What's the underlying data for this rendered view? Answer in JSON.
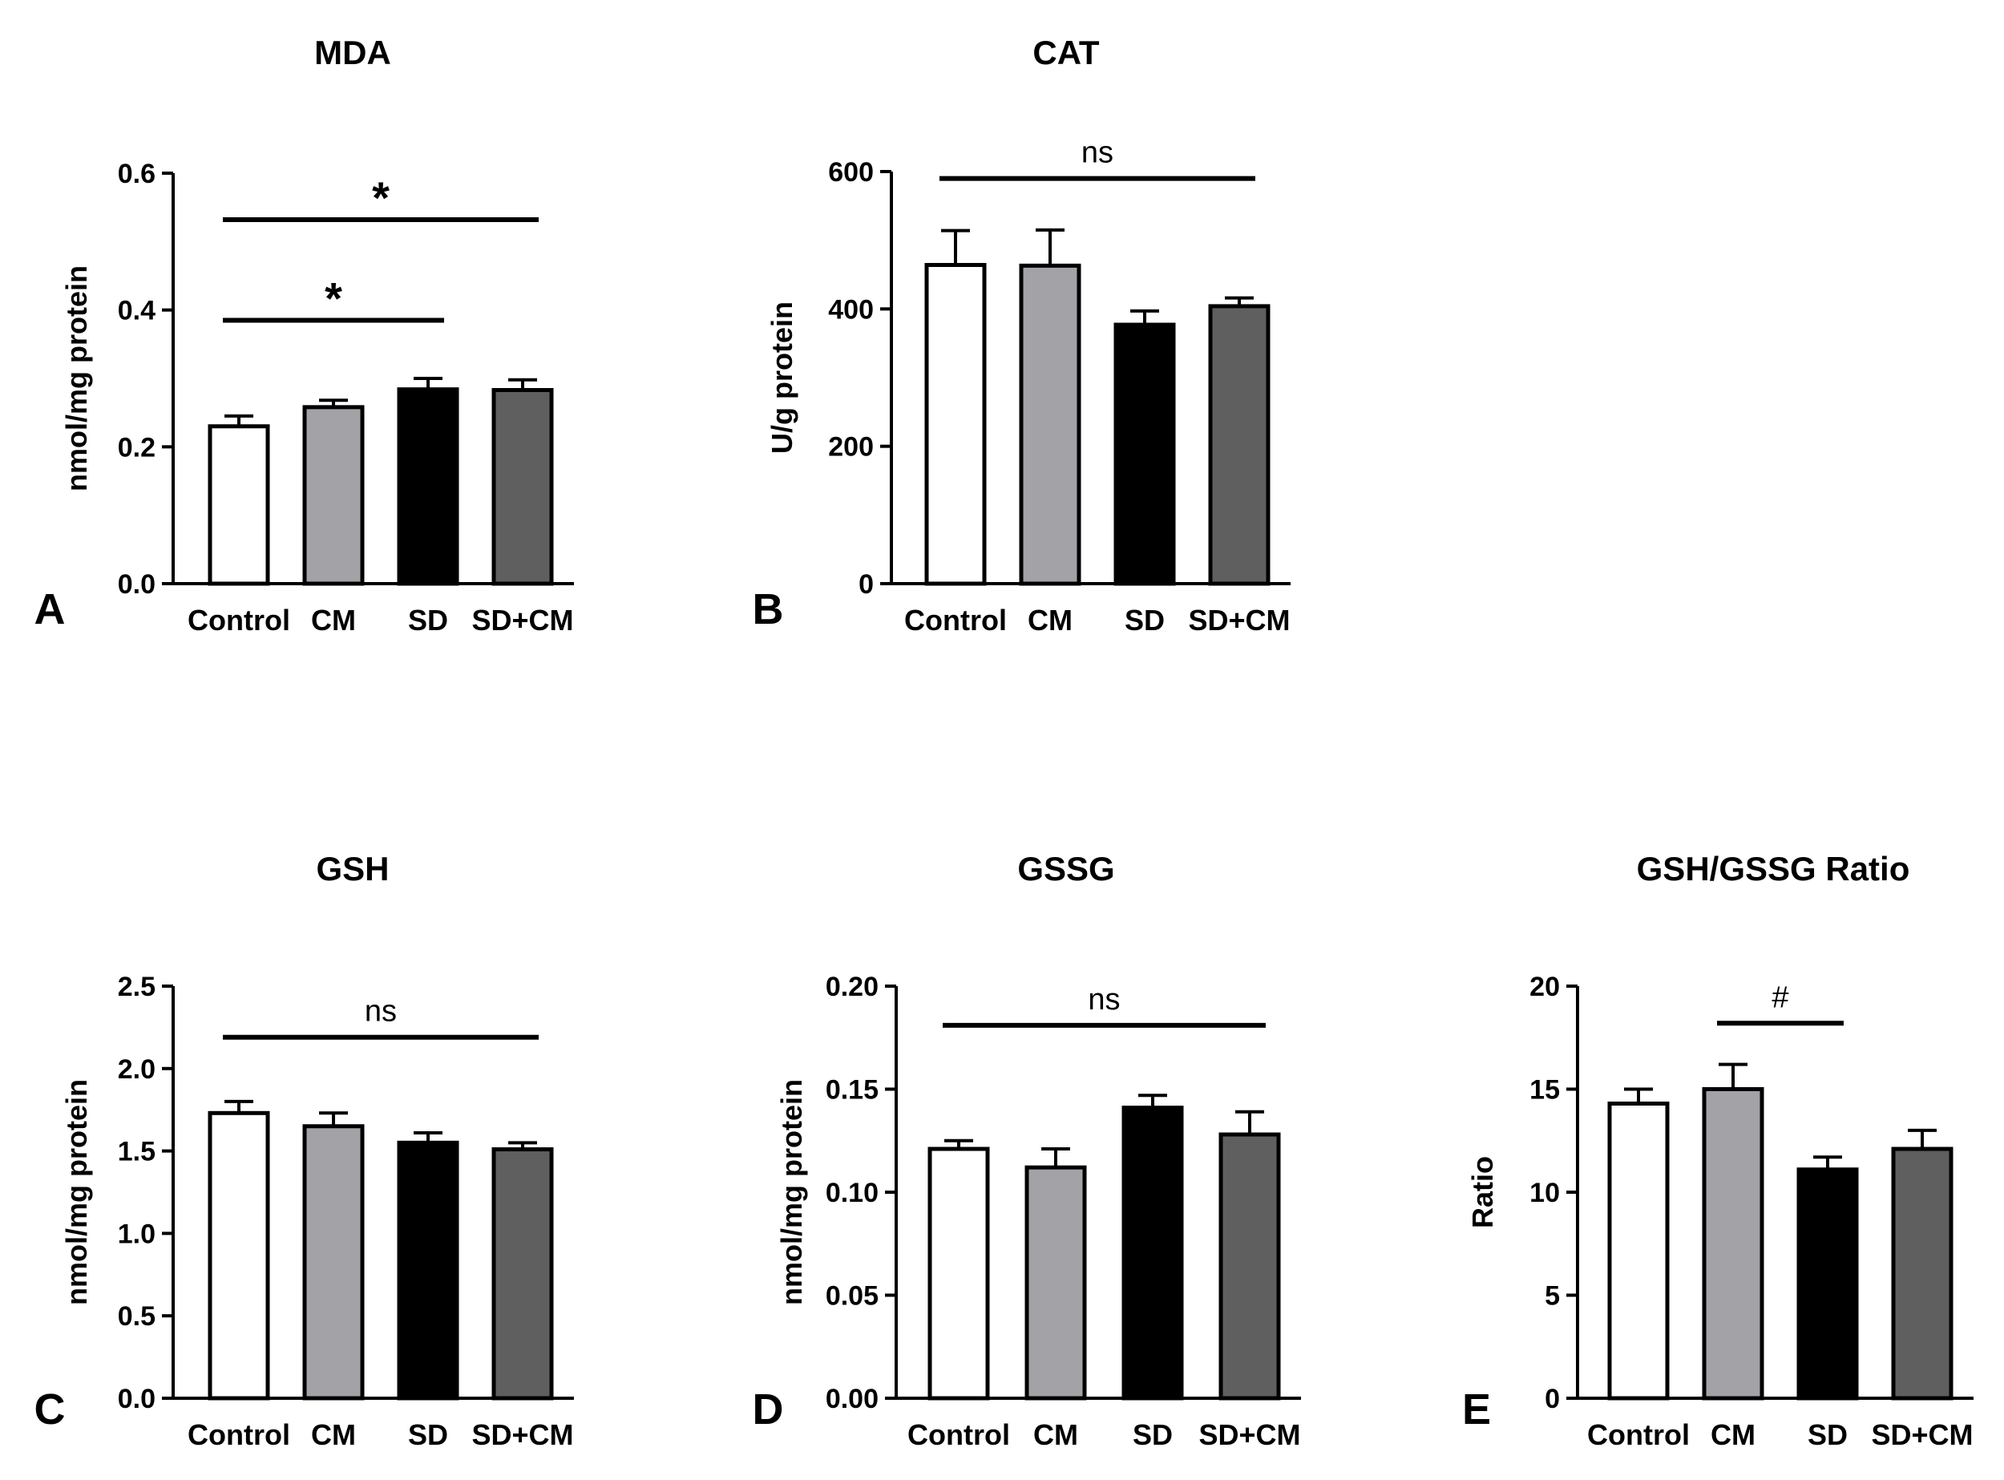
{
  "chart_data": [
    {
      "panel": "A",
      "type": "bar",
      "title": "MDA",
      "ylabel": "nmol/mg protein",
      "xlabel": "",
      "categories": [
        "Control",
        "CM",
        "SD",
        "SD+CM"
      ],
      "values": [
        0.23,
        0.258,
        0.284,
        0.283
      ],
      "errors": [
        0.015,
        0.01,
        0.016,
        0.015
      ],
      "ylim": [
        0,
        0.6
      ],
      "yticks": [
        "0.0",
        "0.2",
        "0.4",
        "0.6"
      ],
      "colors": [
        "#ffffff",
        "#a3a2a7",
        "#000000",
        "#5f5f5f"
      ],
      "annotations": [
        {
          "label": "*",
          "from": 0,
          "to": 3,
          "y": 0.532
        },
        {
          "label": "*",
          "from": 0,
          "to": 2,
          "y": 0.385
        }
      ]
    },
    {
      "panel": "B",
      "type": "bar",
      "title": "CAT",
      "ylabel": "U/g protein",
      "xlabel": "",
      "categories": [
        "Control",
        "CM",
        "SD",
        "SD+CM"
      ],
      "values": [
        464,
        463,
        377,
        404
      ],
      "errors": [
        50,
        52,
        20,
        12
      ],
      "ylim": [
        0,
        600
      ],
      "yticks": [
        "0",
        "200",
        "400",
        "600"
      ],
      "colors": [
        "#ffffff",
        "#a3a2a7",
        "#000000",
        "#5f5f5f"
      ],
      "annotations": [
        {
          "label": "ns",
          "from": 0,
          "to": 3,
          "y": 590
        }
      ]
    },
    {
      "panel": "C",
      "type": "bar",
      "title": "GSH",
      "ylabel": "nmol/mg protein",
      "xlabel": "",
      "categories": [
        "Control",
        "CM",
        "SD",
        "SD+CM"
      ],
      "values": [
        1.73,
        1.65,
        1.55,
        1.51
      ],
      "errors": [
        0.07,
        0.08,
        0.06,
        0.04
      ],
      "ylim": [
        0,
        2.5
      ],
      "yticks": [
        "0.0",
        "0.5",
        "1.0",
        "1.5",
        "2.0",
        "2.5"
      ],
      "colors": [
        "#ffffff",
        "#a3a2a7",
        "#000000",
        "#5f5f5f"
      ],
      "annotations": [
        {
          "label": "ns",
          "from": 0,
          "to": 3,
          "y": 2.19
        }
      ]
    },
    {
      "panel": "D",
      "type": "bar",
      "title": "GSSG",
      "ylabel": "nmol/mg protein",
      "xlabel": "",
      "categories": [
        "Control",
        "CM",
        "SD",
        "SD+CM"
      ],
      "values": [
        0.121,
        0.112,
        0.141,
        0.128
      ],
      "errors": [
        0.004,
        0.009,
        0.006,
        0.011
      ],
      "ylim": [
        0,
        0.2
      ],
      "yticks": [
        "0.00",
        "0.05",
        "0.10",
        "0.15",
        "0.20"
      ],
      "colors": [
        "#ffffff",
        "#a3a2a7",
        "#000000",
        "#5f5f5f"
      ],
      "annotations": [
        {
          "label": "ns",
          "from": 0,
          "to": 3,
          "y": 0.181
        }
      ]
    },
    {
      "panel": "E",
      "type": "bar",
      "title": "GSH/GSSG Ratio",
      "ylabel": "Ratio",
      "xlabel": "",
      "categories": [
        "Control",
        "CM",
        "SD",
        "SD+CM"
      ],
      "values": [
        14.3,
        15.0,
        11.1,
        12.1
      ],
      "errors": [
        0.7,
        1.2,
        0.6,
        0.9
      ],
      "ylim": [
        0,
        20
      ],
      "yticks": [
        "0",
        "5",
        "10",
        "15",
        "20"
      ],
      "colors": [
        "#ffffff",
        "#a3a2a7",
        "#000000",
        "#5f5f5f"
      ],
      "annotations": [
        {
          "label": "#",
          "from": 1,
          "to": 2,
          "y": 18.2
        }
      ]
    }
  ]
}
